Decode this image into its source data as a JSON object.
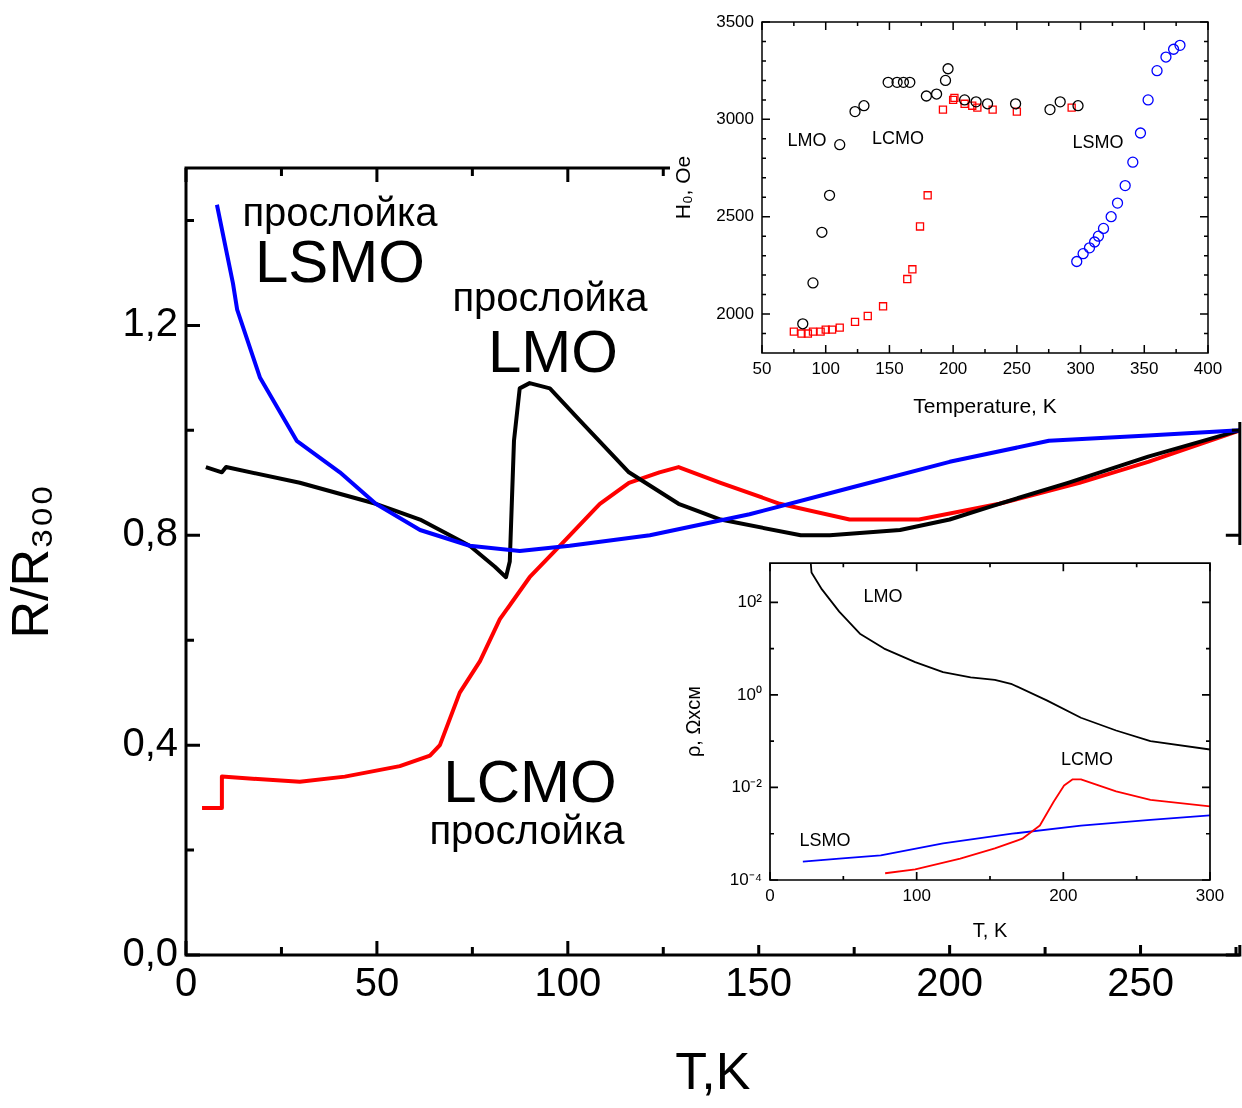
{
  "chart_data": [
    {
      "type": "line",
      "xlabel": "T,K",
      "ylabel": "R/R₃₀₀",
      "xlim": [
        0,
        276
      ],
      "ylim": [
        0,
        1.5
      ],
      "xticks": [
        0,
        {
          "value": 25,
          "label": null
        },
        50,
        {
          "value": 75,
          "label": null
        },
        100,
        {
          "value": 125,
          "label": null
        },
        150,
        {
          "value": 175,
          "label": null
        },
        200,
        {
          "value": 225,
          "label": null
        },
        250,
        {
          "value": 275,
          "label": null
        }
      ],
      "yticks": [
        {
          "value": 0,
          "label": "0,0"
        },
        {
          "value": 0.2,
          "label": null
        },
        {
          "value": 0.4,
          "label": "0,4"
        },
        {
          "value": 0.6,
          "label": null
        },
        {
          "value": 0.8,
          "label": "0,8"
        },
        {
          "value": 1.0,
          "label": null
        },
        {
          "value": 1.2,
          "label": "1,2"
        },
        {
          "value": 1.4,
          "label": null
        }
      ],
      "marker": "none",
      "series": [
        {
          "color": "#0000ff",
          "x": [
            8.1,
            12.3,
            13.4,
            19.4,
            29,
            40.3,
            49.7,
            61.3,
            74.3,
            87.4,
            100.5,
            121.5,
            147.6,
            173.8,
            200,
            226,
            252,
            276
          ],
          "values": [
            1.43,
            1.28,
            1.23,
            1.1,
            0.98,
            0.92,
            0.86,
            0.81,
            0.78,
            0.77,
            0.78,
            0.8,
            0.84,
            0.89,
            0.94,
            0.98,
            0.99,
            1.0
          ]
        },
        {
          "color": "#000000",
          "x": [
            5.2,
            9.4,
            10.5,
            29.8,
            49.7,
            61.3,
            74.3,
            80.9,
            83.8,
            84.8,
            85.9,
            87.4,
            90,
            95.3,
            103,
            116,
            129,
            140,
            161,
            168.6,
            187,
            200,
            213,
            231,
            252,
            276
          ],
          "values": [
            0.93,
            0.92,
            0.93,
            0.9,
            0.86,
            0.83,
            0.78,
            0.74,
            0.72,
            0.75,
            0.98,
            1.08,
            1.09,
            1.08,
            1.02,
            0.92,
            0.86,
            0.83,
            0.8,
            0.8,
            0.81,
            0.83,
            0.86,
            0.9,
            0.95,
            1.0
          ]
        },
        {
          "color": "#ff0000",
          "x": [
            4.2,
            9.2,
            9.4,
            29.8,
            41.6,
            56,
            63.9,
            66.5,
            71.7,
            77,
            82.2,
            90,
            97.9,
            108.4,
            116,
            124,
            129,
            140,
            155.5,
            173.8,
            192,
            213,
            234,
            252,
            276
          ],
          "values": [
            0.28,
            0.28,
            0.34,
            0.33,
            0.34,
            0.36,
            0.38,
            0.4,
            0.5,
            0.56,
            0.64,
            0.72,
            0.78,
            0.86,
            0.9,
            0.92,
            0.93,
            0.9,
            0.86,
            0.83,
            0.83,
            0.86,
            0.9,
            0.94,
            1.0
          ]
        }
      ],
      "annotations": [
        "прослойка",
        "LSMO",
        "прослойка",
        "LMO",
        "LCMO",
        "прослойка"
      ]
    },
    {
      "type": "scatter",
      "xlabel": "Temperature, K",
      "ylabel": "H₀, Oe",
      "xlim": [
        50,
        400
      ],
      "ylim": [
        1800,
        3500
      ],
      "xticks": [
        50,
        {
          "value": 75,
          "label": null
        },
        100,
        {
          "value": 125,
          "label": null
        },
        150,
        {
          "value": 175,
          "label": null
        },
        200,
        {
          "value": 225,
          "label": null
        },
        250,
        {
          "value": 275,
          "label": null
        },
        300,
        {
          "value": 325,
          "label": null
        },
        350,
        {
          "value": 375,
          "label": null
        },
        400
      ],
      "yticks": [
        {
          "value": 1900,
          "label": null
        },
        2000,
        {
          "value": 2100,
          "label": null
        },
        {
          "value": 2200,
          "label": null
        },
        {
          "value": 2300,
          "label": null
        },
        {
          "value": 2400,
          "label": null
        },
        2500,
        {
          "value": 2600,
          "label": null
        },
        {
          "value": 2700,
          "label": null
        },
        {
          "value": 2800,
          "label": null
        },
        {
          "value": 2900,
          "label": null
        },
        3000,
        {
          "value": 3100,
          "label": null
        },
        {
          "value": 3200,
          "label": null
        },
        {
          "value": 3300,
          "label": null
        },
        {
          "value": 3400,
          "label": null
        },
        3500
      ],
      "series": [
        {
          "color": "#000000",
          "marker": "circle",
          "x": [
            82,
            90,
            97,
            103,
            111,
            123,
            130,
            149,
            156,
            161,
            166,
            179,
            187,
            194,
            196,
            209,
            218,
            227,
            249,
            276,
            284,
            298
          ],
          "values": [
            1950,
            2160,
            2420,
            2610,
            2870,
            3040,
            3070,
            3190,
            3190,
            3190,
            3190,
            3120,
            3130,
            3200,
            3260,
            3100,
            3090,
            3080,
            3080,
            3050,
            3090,
            3070
          ]
        },
        {
          "color": "#ff0000",
          "marker": "square",
          "x": [
            75,
            81,
            86,
            90,
            96,
            100,
            105,
            111,
            123,
            133,
            145,
            164,
            168,
            174,
            180,
            192,
            200,
            201,
            209,
            215,
            219,
            231,
            250,
            293
          ],
          "values": [
            1910,
            1900,
            1900,
            1910,
            1910,
            1920,
            1920,
            1930,
            1960,
            1990,
            2040,
            2180,
            2230,
            2450,
            2610,
            3050,
            3100,
            3110,
            3080,
            3070,
            3060,
            3050,
            3040,
            3060
          ]
        },
        {
          "color": "#0000ff",
          "marker": "circle",
          "x": [
            297,
            302,
            307,
            311,
            314,
            318,
            324,
            329,
            335,
            341,
            347,
            353,
            360,
            367,
            373,
            378
          ],
          "values": [
            2270,
            2310,
            2340,
            2370,
            2400,
            2440,
            2500,
            2570,
            2660,
            2780,
            2930,
            3100,
            3250,
            3320,
            3360,
            3380
          ]
        }
      ],
      "annotations": [
        "LMO",
        "LCMO",
        "LSMO"
      ]
    },
    {
      "type": "line",
      "xlabel": "T, K",
      "ylabel": "ρ, Ωхсм",
      "log": "y",
      "xlim": [
        0,
        300
      ],
      "ylim": [
        0.0001,
        700
      ],
      "xticks": [
        0,
        {
          "value": 50,
          "label": null
        },
        100,
        {
          "value": 150,
          "label": null
        },
        200,
        {
          "value": 250,
          "label": null
        },
        300
      ],
      "yticks": [
        {
          "value": 0.0001,
          "label": "10⁻⁴"
        },
        {
          "value": 0.001,
          "label": null
        },
        {
          "value": 0.01,
          "label": "10⁻²"
        },
        {
          "value": 0.1,
          "label": null
        },
        {
          "value": 1,
          "label": "10⁰"
        },
        {
          "value": 10,
          "label": null
        },
        {
          "value": 100,
          "label": "10²"
        }
      ],
      "marker": "none",
      "series": [
        {
          "color": "#000000",
          "x": [
            27.8,
            28.3,
            35.4,
            47.2,
            61.3,
            77.8,
            99,
            118,
            136.8,
            153.3,
            165,
            188.7,
            212,
            236,
            259.4,
            300
          ],
          "values": [
            700,
            440,
            190,
            63,
            21,
            10,
            5.1,
            3.1,
            2.4,
            2.1,
            1.7,
            0.76,
            0.32,
            0.17,
            0.1,
            0.066
          ]
        },
        {
          "color": "#ff0000",
          "x": [
            78.5,
            99,
            129.7,
            153.3,
            172,
            184,
            193.4,
            200.5,
            206.4,
            212,
            236,
            259.4,
            300
          ],
          "values": [
            0.00014,
            0.00017,
            0.00029,
            0.00048,
            0.00078,
            0.0015,
            0.0049,
            0.011,
            0.015,
            0.015,
            0.0082,
            0.0054,
            0.0039
          ]
        },
        {
          "color": "#0000ff",
          "x": [
            22.4,
            47.2,
            75.5,
            118,
            165,
            212,
            259.4,
            300
          ],
          "values": [
            0.00025,
            0.00029,
            0.00034,
            0.00062,
            0.001,
            0.0015,
            0.002,
            0.0025
          ]
        }
      ],
      "annotations": [
        "LMO",
        "LCMO",
        "LSMO"
      ]
    }
  ]
}
